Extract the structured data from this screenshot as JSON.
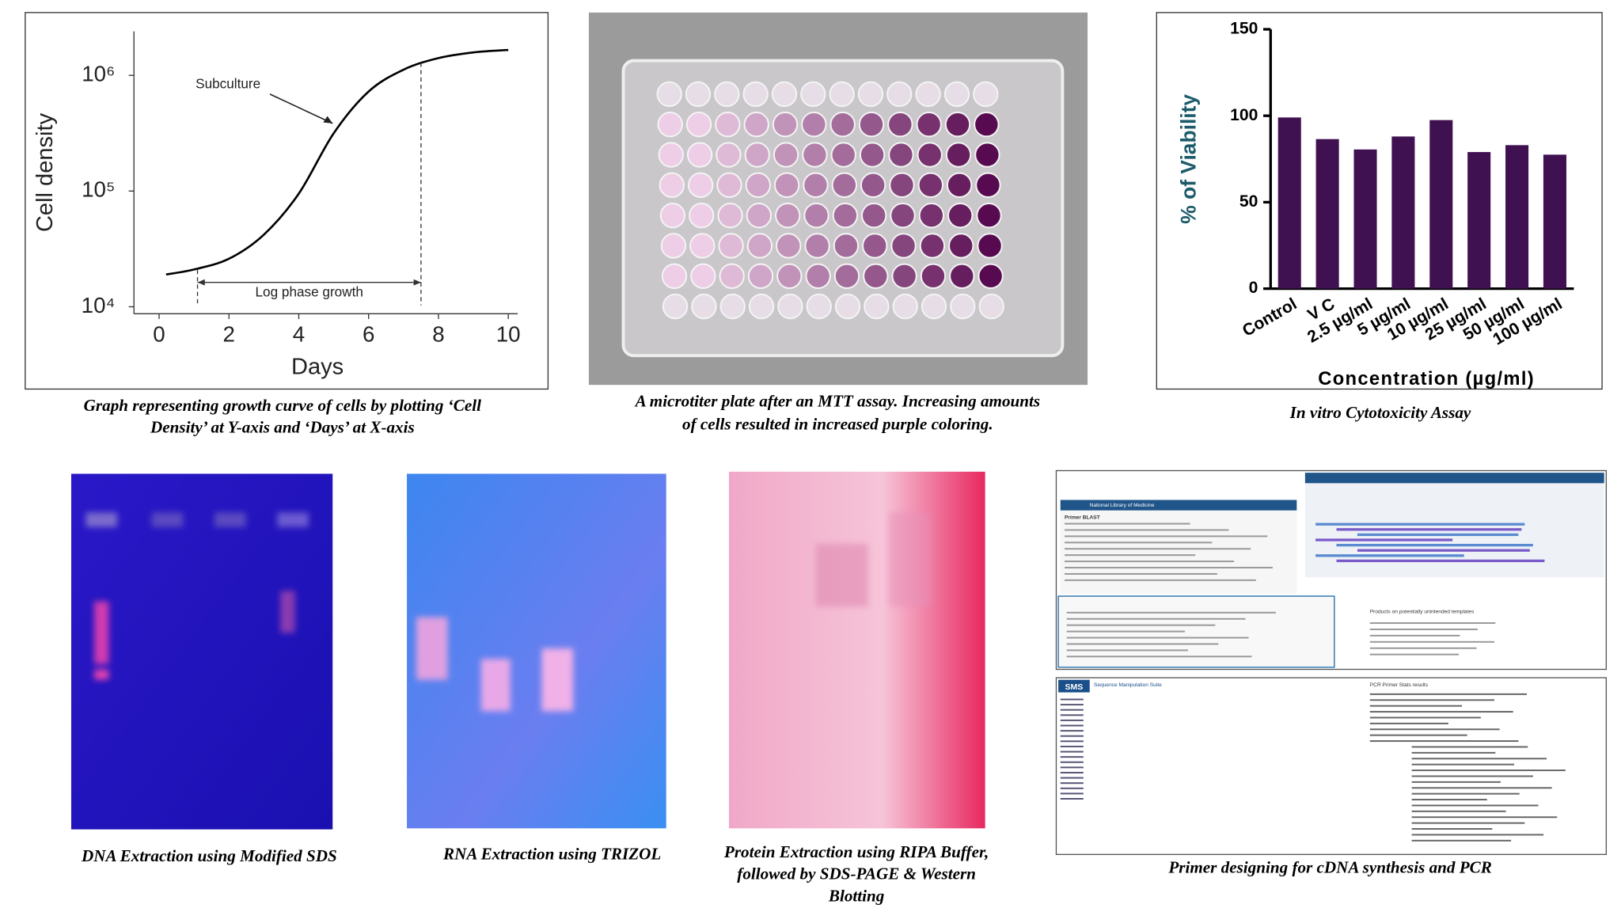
{
  "chart_data": [
    {
      "type": "line",
      "xlabel": "Days",
      "ylabel": "Cell density",
      "log_y": true,
      "color": "#000000",
      "x": [
        0.2,
        1,
        2,
        3,
        4,
        5,
        6,
        7,
        8,
        9,
        10
      ],
      "values": [
        19000,
        21000,
        26000,
        42000,
        95000,
        316000,
        725000,
        1120000,
        1410000,
        1580000,
        1660000
      ],
      "xlim": [
        -0.72,
        10.27
      ],
      "xticks": [
        0,
        2,
        4,
        6,
        8,
        10
      ],
      "ylim": [
        8700,
        2400000
      ],
      "yticks": [
        {
          "value": 10000,
          "label": "10⁴"
        },
        {
          "value": 100000,
          "label": "10⁵"
        },
        {
          "value": 1000000,
          "label": "10⁶"
        }
      ],
      "annotations": [
        {
          "text": "Subculture"
        },
        {
          "text": "Log phase growth",
          "x": [
            1.1,
            7.5
          ]
        }
      ],
      "caption": [
        "Graph representing growth curve of cells by plotting ‘Cell",
        "Density’ at Y-axis and ‘Days’ at X-axis"
      ]
    },
    {
      "type": "bar",
      "xlabel": "Concentration (µg/ml)",
      "ylabel": "% of Viability",
      "color": "#3f1150",
      "categories": [
        "Control",
        "V C",
        "2.5 µg/ml",
        "5 µg/ml",
        "10 µg/ml",
        "25 µg/ml",
        "50 µg/ml",
        "100 µg/ml"
      ],
      "values": [
        99,
        86.5,
        80.5,
        88,
        97.5,
        79,
        83,
        77.5
      ],
      "ylim": [
        0,
        150
      ],
      "yticks": [
        0,
        50,
        100,
        150
      ],
      "caption": [
        "In vitro Cytotoxicity Assay"
      ]
    }
  ],
  "panels": [
    {
      "caption": [
        "A microtiter plate after an MTT assay. Increasing amounts",
        "of cells resulted in increased purple coloring."
      ]
    },
    {
      "caption": [
        "DNA Extraction using Modified SDS"
      ]
    },
    {
      "caption": [
        "RNA Extraction using TRIZOL"
      ]
    },
    {
      "caption": [
        "Protein Extraction using RIPA Buffer,",
        "followed by SDS-PAGE & Western",
        "Blotting"
      ]
    },
    {
      "caption": [
        "Primer designing for cDNA synthesis and PCR"
      ],
      "texts": [
        "National Library of Medicine",
        "Primer BLAST",
        "Products on potentially unintended templates",
        "SMS",
        "Sequence Manipulation Suite",
        "PCR Primer Stats results"
      ]
    }
  ]
}
